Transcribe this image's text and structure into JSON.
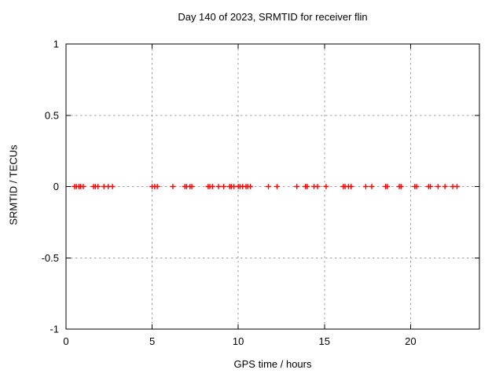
{
  "window": {
    "background_color": "#ffffff"
  },
  "chart_data": {
    "type": "scatter",
    "title": "Day 140 of 2023, SRMTID for receiver flin",
    "xlabel": "GPS time / hours",
    "ylabel": "SRMTID / TECUs",
    "xlim": [
      0,
      24
    ],
    "ylim": [
      -1,
      1
    ],
    "xticks": [
      0,
      5,
      10,
      15,
      20
    ],
    "yticks": [
      -1,
      -0.5,
      0,
      0.5,
      1
    ],
    "grid": true,
    "grid_style": "dashed",
    "legend": "none",
    "marker": "plus",
    "colors": {
      "marker": "#ff0000",
      "grid": "#9e9e9e",
      "axis": "#000000",
      "text": "#000000",
      "background": "#ffffff"
    },
    "series": [
      {
        "name": "SRMTID",
        "x": [
          0.5,
          0.6,
          0.75,
          0.85,
          1.0,
          1.6,
          1.7,
          1.85,
          2.2,
          2.45,
          2.7,
          5.0,
          5.15,
          5.3,
          6.2,
          6.9,
          7.0,
          7.2,
          7.3,
          8.25,
          8.35,
          8.5,
          8.85,
          9.15,
          9.5,
          9.6,
          9.75,
          10.0,
          10.1,
          10.25,
          10.45,
          10.55,
          10.7,
          11.75,
          12.25,
          13.4,
          13.9,
          14.0,
          14.4,
          14.6,
          15.1,
          16.1,
          16.2,
          16.4,
          16.55,
          17.4,
          17.75,
          18.55,
          18.65,
          19.35,
          19.45,
          20.25,
          20.35,
          21.05,
          21.15,
          21.6,
          22.0,
          22.45,
          22.7
        ],
        "y": [
          0,
          0,
          0,
          0,
          0,
          0,
          0,
          0,
          0,
          0,
          0,
          0,
          0,
          0,
          0,
          0,
          0,
          0,
          0,
          0,
          0,
          0,
          0,
          0,
          0,
          0,
          0,
          0,
          0,
          0,
          0,
          0,
          0,
          0,
          0,
          0,
          0,
          0,
          0,
          0,
          0,
          0,
          0,
          0,
          0,
          0,
          0,
          0,
          0,
          0,
          0,
          0,
          0,
          0,
          0,
          0,
          0,
          0,
          0
        ]
      }
    ]
  }
}
